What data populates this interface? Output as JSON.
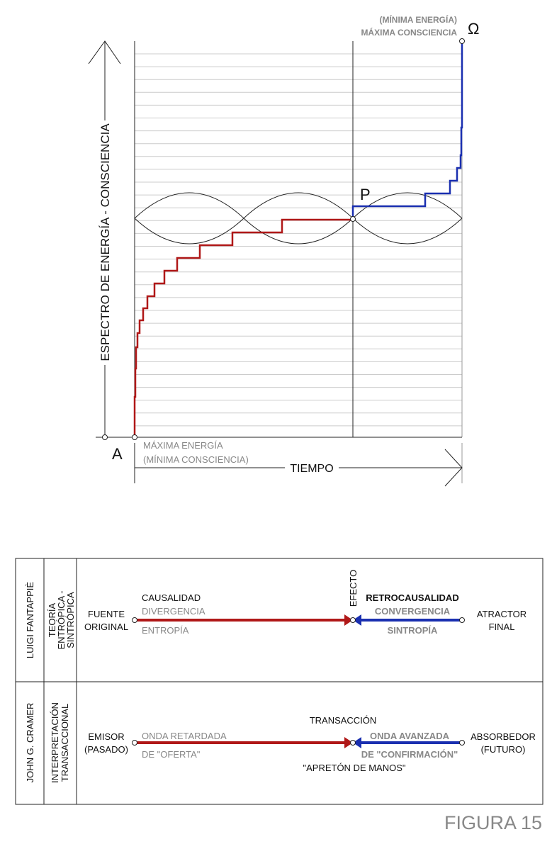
{
  "figure": {
    "omega_label": [
      "(MÍNIMA ENERGÍA)",
      "MÁXIMA CONSCIENCIA"
    ],
    "omega": "Ω",
    "p": "P",
    "a": "A",
    "a_label": [
      "MÁXIMA ENERGÍA",
      "(MÍNIMA CONSCIENCIA)"
    ],
    "y_axis": "ESPECTRO DE ENERGÍA - CONSCIENCIA",
    "x_axis": "TIEMPO"
  },
  "table": {
    "rows": [
      {
        "author": "LUIGI FANTAPPIÈ",
        "theory": [
          "TEORÍA",
          "ENTRÓPICA -",
          "SINTRÓPICA"
        ],
        "left": [
          "FUENTE",
          "ORIGINAL"
        ],
        "left_top": "CAUSALIDAD",
        "left_mid": "DIVERGENCIA",
        "left_bottom": "ENTROPÍA",
        "center": "EFECTO",
        "right_top": "RETROCAUSALIDAD",
        "right_mid": "CONVERGENCIA",
        "right_bottom": "SINTROPÍA",
        "right": [
          "ATRACTOR",
          "FINAL"
        ]
      },
      {
        "author": "JOHN G. CRAMER",
        "theory": [
          "INTERPRETACIÓN",
          "TRANSACCIONAL"
        ],
        "left": [
          "EMISOR",
          "(PASADO)"
        ],
        "left_mid": "ONDA RETARDADA",
        "left_bottom": "DE \"OFERTA\"",
        "center": "TRANSACCIÓN",
        "right_mid": "ONDA AVANZADA",
        "right_bottom": "DE \"CONFIRMACIÓN\"",
        "under": "\"APRETÓN DE MANOS\"",
        "right": [
          "ABSORBEDOR",
          "(FUTURO)"
        ]
      }
    ]
  },
  "caption": "FIGURA 15"
}
